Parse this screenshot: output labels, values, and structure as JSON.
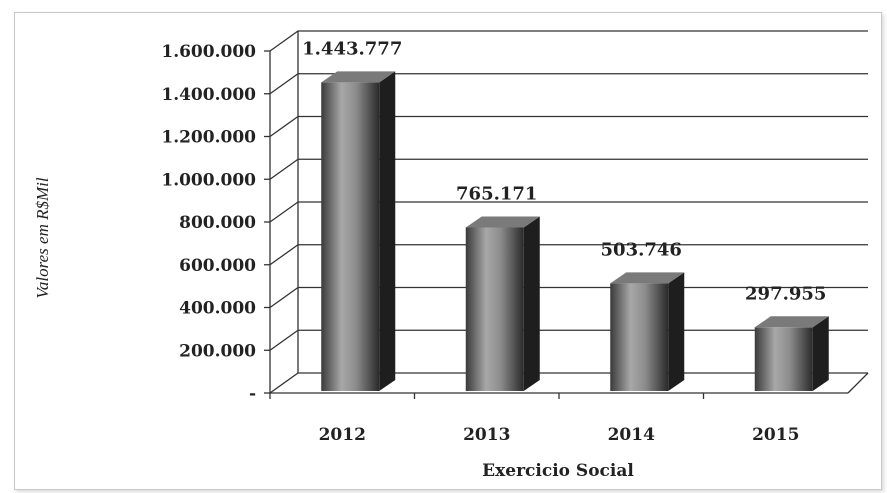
{
  "chart_data": {
    "type": "bar",
    "categories": [
      "2012",
      "2013",
      "2014",
      "2015"
    ],
    "values": [
      1443777,
      765171,
      503746,
      297955
    ],
    "data_labels": [
      "1.443.777",
      "765.171",
      "503.746",
      "297.955"
    ],
    "title": "",
    "xlabel": "Exercicio Social",
    "ylabel": "Valores em R$Mil",
    "ylim": [
      0,
      1600000
    ],
    "yticks": [
      0,
      200000,
      400000,
      600000,
      800000,
      1000000,
      1200000,
      1400000,
      1600000
    ],
    "ytick_labels": [
      "-",
      "200.000",
      "400.000",
      "600.000",
      "800.000",
      "1.000.000",
      "1.200.000",
      "1.400.000",
      "1.600.000"
    ],
    "grid": true,
    "style": "3d-column",
    "colors": {
      "bar_light": "#a0a0a0",
      "bar_dark": "#2a2a2a",
      "bar_top": "#7a7a7a",
      "bar_side": "#1e1e1e",
      "grid": "#333333"
    }
  }
}
